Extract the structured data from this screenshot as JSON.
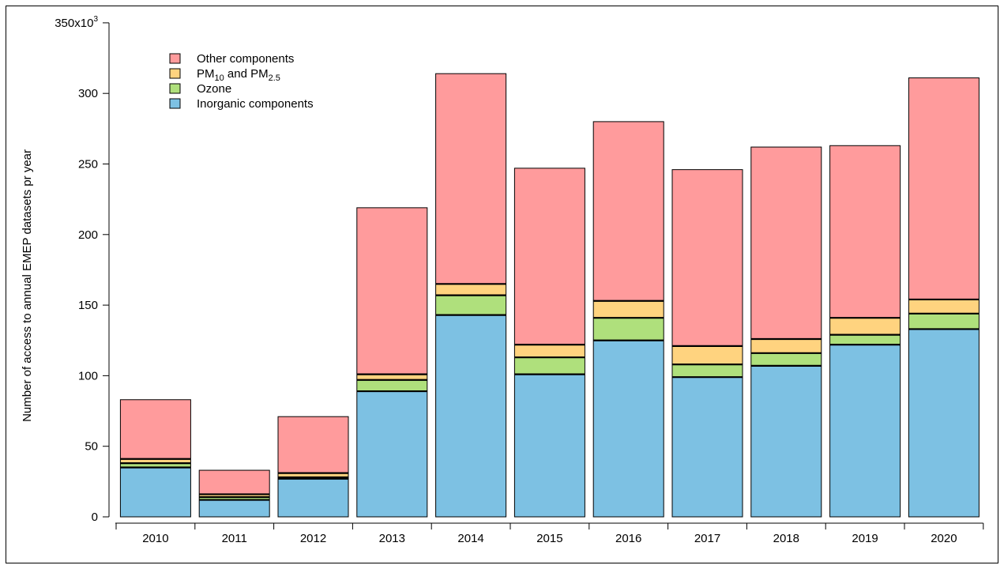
{
  "chart_data": {
    "type": "bar",
    "stacked": true,
    "title": "",
    "xlabel": "",
    "ylabel": "Number of access to annual EMEP datasets pr year",
    "y_top_label": {
      "base": "350x10",
      "exp": "3"
    },
    "ylim": [
      0,
      350
    ],
    "y_ticks": [
      0,
      50,
      100,
      150,
      200,
      250,
      300
    ],
    "grid": false,
    "legend_position": "top-left",
    "categories": [
      "2010",
      "2011",
      "2012",
      "2013",
      "2014",
      "2015",
      "2016",
      "2017",
      "2018",
      "2019",
      "2020"
    ],
    "series": [
      {
        "key": "inorganic",
        "name": "Inorganic components",
        "color": "#7dc1e3",
        "values": [
          35,
          12,
          27,
          89,
          143,
          101,
          125,
          99,
          107,
          122,
          133
        ]
      },
      {
        "key": "ozone",
        "name": "Ozone",
        "color": "#afe07c",
        "values": [
          3,
          2,
          1,
          8,
          14,
          12,
          16,
          9,
          9,
          7,
          11
        ]
      },
      {
        "key": "pm",
        "name": "PM10 and PM2.5",
        "color": "#ffd37f",
        "values": [
          3,
          2,
          3,
          4,
          8,
          9,
          12,
          13,
          10,
          12,
          10
        ]
      },
      {
        "key": "other",
        "name": "Other components",
        "color": "#ff9b9c",
        "values": [
          42,
          17,
          40,
          118,
          149,
          125,
          127,
          125,
          136,
          122,
          157
        ]
      }
    ],
    "legend": [
      {
        "key": "other",
        "label": "Other components"
      },
      {
        "key": "pm",
        "label_parts": [
          "PM",
          "10",
          " and PM",
          "2.5"
        ]
      },
      {
        "key": "ozone",
        "label": "Ozone"
      },
      {
        "key": "inorganic",
        "label": "Inorganic components"
      }
    ]
  }
}
